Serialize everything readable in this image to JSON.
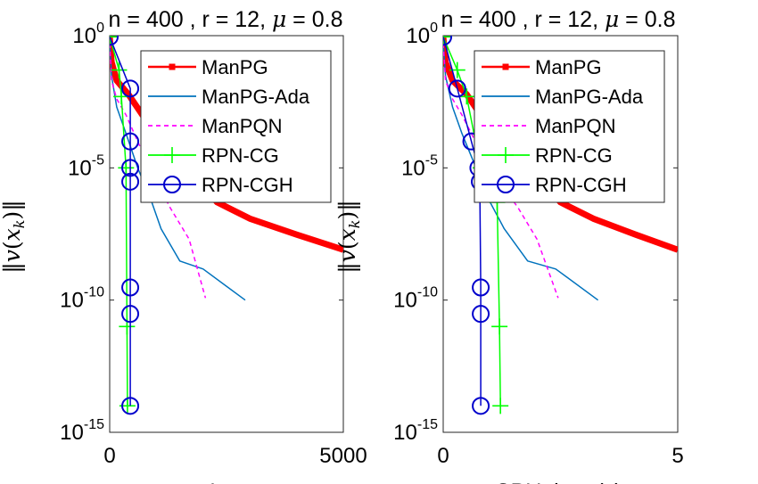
{
  "chart_data": [
    {
      "type": "line",
      "title": "n = 400 , r = 12, μ = 0.8",
      "title_parts": {
        "pre": "n = 400 , r = 12,",
        "mu": "μ",
        "post": "= 0.8"
      },
      "xlabel": "Iter",
      "ylabel": "||v(x_k)||",
      "ylabel_parts": {
        "bar_l": "‖",
        "v": "v",
        "open": "(",
        "x": "x",
        "k": "k",
        "close": ")",
        "bar_r": "‖"
      },
      "x_scale": "linear",
      "y_scale": "log",
      "xlim": [
        0,
        5000
      ],
      "ylim": [
        1e-15,
        1
      ],
      "xticks": [
        {
          "v": 0,
          "label": "0"
        },
        {
          "v": 5000,
          "label": "5000"
        }
      ],
      "yticks": [
        {
          "v": 1,
          "base": "10",
          "exp": "0"
        },
        {
          "v": 1e-05,
          "base": "10",
          "exp": "-5"
        },
        {
          "v": 1e-10,
          "base": "10",
          "exp": "-10"
        },
        {
          "v": 1e-15,
          "base": "10",
          "exp": "-15"
        }
      ],
      "legend_position": "top-right",
      "series": [
        {
          "name": "ManPG",
          "color": "#ff0000",
          "style": "solid-thick",
          "marker": "square",
          "points": [
            [
              0,
              0.9
            ],
            [
              40,
              0.1
            ],
            [
              150,
              0.02
            ],
            [
              400,
              0.006
            ],
            [
              700,
              0.001
            ],
            [
              1000,
              0.0002
            ],
            [
              1400,
              3e-05
            ],
            [
              1800,
              5e-06
            ],
            [
              2300,
              5e-07
            ],
            [
              3000,
              1.2e-07
            ],
            [
              4000,
              3e-08
            ],
            [
              5000,
              8e-09
            ]
          ]
        },
        {
          "name": "ManPG-Ada",
          "color": "#0072bd",
          "style": "solid",
          "points": [
            [
              0,
              0.6
            ],
            [
              40,
              0.03
            ],
            [
              150,
              0.002
            ],
            [
              350,
              0.0002
            ],
            [
              600,
              1e-05
            ],
            [
              900,
              5e-07
            ],
            [
              1100,
              5e-08
            ],
            [
              1500,
              3e-09
            ],
            [
              2000,
              1.5e-09
            ],
            [
              2900,
              1e-10
            ]
          ]
        },
        {
          "name": "ManPQN",
          "color": "#ff00ff",
          "style": "dashed",
          "points": [
            [
              0,
              0.5
            ],
            [
              40,
              0.02
            ],
            [
              150,
              0.004
            ],
            [
              350,
              0.001
            ],
            [
              700,
              4e-05
            ],
            [
              1000,
              3e-06
            ],
            [
              1300,
              3e-07
            ],
            [
              1700,
              2e-08
            ],
            [
              2050,
              1.2e-10
            ]
          ]
        },
        {
          "name": "RPN-CG",
          "color": "#00ff00",
          "style": "solid",
          "marker": "plus",
          "points": [
            [
              0,
              0.9
            ],
            [
              200,
              0.05
            ],
            [
              250,
              0.005
            ],
            [
              350,
              1e-05
            ],
            [
              370,
              1e-11
            ],
            [
              380,
              1e-14
            ]
          ]
        },
        {
          "name": "RPN-CGH",
          "color": "#0000cc",
          "style": "solid",
          "marker": "circle",
          "points": [
            [
              0,
              0.9
            ],
            [
              440,
              0.01
            ],
            [
              440,
              0.0001
            ],
            [
              440,
              1e-05
            ],
            [
              440,
              3e-06
            ],
            [
              440,
              3e-10
            ],
            [
              440,
              3e-11
            ],
            [
              440,
              1e-14
            ]
          ]
        }
      ]
    },
    {
      "type": "line",
      "title": "n = 400 , r = 12, μ = 0.8",
      "title_parts": {
        "pre": "n = 400 , r = 12,",
        "mu": "μ",
        "post": "= 0.8"
      },
      "xlabel": "CPU time (s)",
      "ylabel": "||v(x_k)||",
      "ylabel_parts": {
        "bar_l": "‖",
        "v": "v",
        "open": "(",
        "x": "x",
        "k": "k",
        "close": ")",
        "bar_r": "‖"
      },
      "x_scale": "linear",
      "y_scale": "log",
      "xlim": [
        0,
        5
      ],
      "ylim": [
        1e-15,
        1
      ],
      "xticks": [
        {
          "v": 0,
          "label": "0"
        },
        {
          "v": 5,
          "label": "5"
        }
      ],
      "yticks": [
        {
          "v": 1,
          "base": "10",
          "exp": "0"
        },
        {
          "v": 1e-05,
          "base": "10",
          "exp": "-5"
        },
        {
          "v": 1e-10,
          "base": "10",
          "exp": "-10"
        },
        {
          "v": 1e-15,
          "base": "10",
          "exp": "-15"
        }
      ],
      "legend_position": "top-right",
      "series": [
        {
          "name": "ManPG",
          "color": "#ff0000",
          "style": "solid-thick",
          "marker": "square",
          "points": [
            [
              0,
              0.9
            ],
            [
              0.05,
              0.1
            ],
            [
              0.2,
              0.02
            ],
            [
              0.5,
              0.006
            ],
            [
              0.8,
              0.001
            ],
            [
              1.2,
              0.0002
            ],
            [
              1.6,
              3e-05
            ],
            [
              2.0,
              5e-06
            ],
            [
              2.5,
              5e-07
            ],
            [
              3.2,
              1.2e-07
            ],
            [
              4.1,
              3e-08
            ],
            [
              5.0,
              8e-09
            ]
          ]
        },
        {
          "name": "ManPG-Ada",
          "color": "#0072bd",
          "style": "solid",
          "points": [
            [
              0,
              0.6
            ],
            [
              0.05,
              0.03
            ],
            [
              0.2,
              0.002
            ],
            [
              0.4,
              0.0002
            ],
            [
              0.7,
              1e-05
            ],
            [
              1.0,
              5e-07
            ],
            [
              1.3,
              5e-08
            ],
            [
              1.8,
              3e-09
            ],
            [
              2.4,
              1.5e-09
            ],
            [
              3.3,
              1e-10
            ]
          ]
        },
        {
          "name": "ManPQN",
          "color": "#ff00ff",
          "style": "dashed",
          "points": [
            [
              0,
              0.5
            ],
            [
              0.05,
              0.02
            ],
            [
              0.2,
              0.004
            ],
            [
              0.4,
              0.001
            ],
            [
              0.8,
              4e-05
            ],
            [
              1.2,
              3e-06
            ],
            [
              1.6,
              3e-07
            ],
            [
              2.0,
              2e-08
            ],
            [
              2.45,
              1.2e-10
            ]
          ]
        },
        {
          "name": "RPN-CG",
          "color": "#00ff00",
          "style": "solid",
          "marker": "plus",
          "points": [
            [
              0,
              0.9
            ],
            [
              0.3,
              0.05
            ],
            [
              0.5,
              0.005
            ],
            [
              0.8,
              1e-05
            ],
            [
              1.15,
              5e-07
            ],
            [
              1.2,
              1e-11
            ],
            [
              1.22,
              1e-14
            ]
          ]
        },
        {
          "name": "RPN-CGH",
          "color": "#0000cc",
          "style": "solid",
          "marker": "circle",
          "points": [
            [
              0,
              0.9
            ],
            [
              0.3,
              0.01
            ],
            [
              0.6,
              0.0001
            ],
            [
              0.75,
              1e-05
            ],
            [
              0.78,
              3e-06
            ],
            [
              0.8,
              3e-10
            ],
            [
              0.8,
              3e-11
            ],
            [
              0.8,
              1e-14
            ]
          ]
        }
      ]
    }
  ]
}
